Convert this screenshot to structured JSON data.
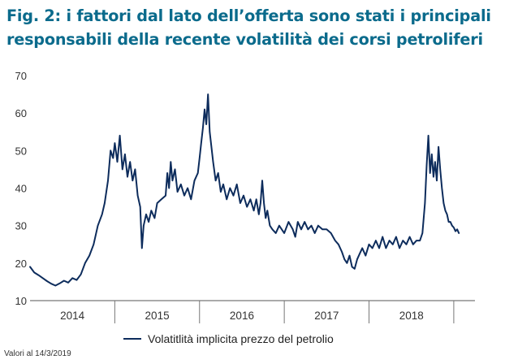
{
  "chart_data": {
    "type": "line",
    "title": "Fig. 2: i fattori dal lato dell’offerta sono stati i principali responsabili della recente volatilità dei corsi petroliferi",
    "title_lines": [
      "Fig. 2: i fattori dal lato dell’offerta sono stati i principali",
      "responsabili della recente volatilità dei corsi petroliferi"
    ],
    "xlabel": "",
    "ylabel": "",
    "xlim": [
      2014.0,
      2019.25
    ],
    "ylim": [
      10,
      70
    ],
    "y_ticks": [
      10,
      20,
      30,
      40,
      50,
      60,
      70
    ],
    "x_tick_labels": [
      {
        "label": "2014",
        "pos": 2014.5
      },
      {
        "label": "2015",
        "pos": 2015.5
      },
      {
        "label": "2016",
        "pos": 2016.5
      },
      {
        "label": "2017",
        "pos": 2017.5
      },
      {
        "label": "2018",
        "pos": 2018.5
      }
    ],
    "x_separators": [
      2015.0,
      2016.0,
      2017.0,
      2018.0,
      2019.0
    ],
    "grid": false,
    "legend": "bottom-center",
    "series": [
      {
        "name": "Volatitlità implicita prezzo del petrolio",
        "color": "#0d2c5c",
        "points": [
          [
            2014.0,
            19.0
          ],
          [
            2014.05,
            17.5
          ],
          [
            2014.1,
            16.8
          ],
          [
            2014.15,
            16.0
          ],
          [
            2014.2,
            15.2
          ],
          [
            2014.25,
            14.5
          ],
          [
            2014.3,
            14.0
          ],
          [
            2014.35,
            14.6
          ],
          [
            2014.4,
            15.3
          ],
          [
            2014.45,
            14.8
          ],
          [
            2014.5,
            16.0
          ],
          [
            2014.55,
            15.5
          ],
          [
            2014.6,
            17.0
          ],
          [
            2014.65,
            20.0
          ],
          [
            2014.7,
            22.0
          ],
          [
            2014.75,
            25.0
          ],
          [
            2014.8,
            30.0
          ],
          [
            2014.85,
            33.0
          ],
          [
            2014.88,
            36.0
          ],
          [
            2014.92,
            42.0
          ],
          [
            2014.95,
            50.0
          ],
          [
            2014.98,
            48.0
          ],
          [
            2015.0,
            52.0
          ],
          [
            2015.03,
            47.0
          ],
          [
            2015.06,
            54.0
          ],
          [
            2015.09,
            45.0
          ],
          [
            2015.12,
            49.0
          ],
          [
            2015.15,
            43.0
          ],
          [
            2015.18,
            47.0
          ],
          [
            2015.21,
            42.0
          ],
          [
            2015.24,
            45.0
          ],
          [
            2015.27,
            38.0
          ],
          [
            2015.3,
            35.0
          ],
          [
            2015.32,
            24.0
          ],
          [
            2015.34,
            30.0
          ],
          [
            2015.37,
            33.0
          ],
          [
            2015.4,
            31.0
          ],
          [
            2015.43,
            34.0
          ],
          [
            2015.47,
            32.0
          ],
          [
            2015.5,
            36.0
          ],
          [
            2015.55,
            37.0
          ],
          [
            2015.6,
            38.0
          ],
          [
            2015.62,
            44.0
          ],
          [
            2015.64,
            40.0
          ],
          [
            2015.66,
            47.0
          ],
          [
            2015.68,
            42.0
          ],
          [
            2015.71,
            45.0
          ],
          [
            2015.74,
            39.0
          ],
          [
            2015.78,
            41.0
          ],
          [
            2015.82,
            38.0
          ],
          [
            2015.86,
            40.0
          ],
          [
            2015.9,
            37.0
          ],
          [
            2015.94,
            42.0
          ],
          [
            2015.98,
            44.0
          ],
          [
            2016.0,
            48.0
          ],
          [
            2016.02,
            52.0
          ],
          [
            2016.04,
            56.0
          ],
          [
            2016.06,
            61.0
          ],
          [
            2016.08,
            57.0
          ],
          [
            2016.1,
            65.0
          ],
          [
            2016.12,
            55.0
          ],
          [
            2016.14,
            51.0
          ],
          [
            2016.16,
            47.0
          ],
          [
            2016.19,
            42.0
          ],
          [
            2016.22,
            44.0
          ],
          [
            2016.25,
            39.0
          ],
          [
            2016.28,
            41.0
          ],
          [
            2016.32,
            37.0
          ],
          [
            2016.36,
            40.0
          ],
          [
            2016.4,
            38.0
          ],
          [
            2016.44,
            41.0
          ],
          [
            2016.48,
            36.0
          ],
          [
            2016.52,
            38.0
          ],
          [
            2016.56,
            35.0
          ],
          [
            2016.6,
            37.0
          ],
          [
            2016.64,
            34.0
          ],
          [
            2016.67,
            37.0
          ],
          [
            2016.7,
            33.0
          ],
          [
            2016.72,
            36.0
          ],
          [
            2016.74,
            42.0
          ],
          [
            2016.76,
            36.0
          ],
          [
            2016.78,
            32.0
          ],
          [
            2016.8,
            34.0
          ],
          [
            2016.83,
            30.0
          ],
          [
            2016.86,
            29.0
          ],
          [
            2016.9,
            28.0
          ],
          [
            2016.94,
            30.0
          ],
          [
            2017.0,
            28.0
          ],
          [
            2017.05,
            31.0
          ],
          [
            2017.1,
            29.0
          ],
          [
            2017.13,
            27.0
          ],
          [
            2017.16,
            31.0
          ],
          [
            2017.2,
            29.0
          ],
          [
            2017.24,
            31.0
          ],
          [
            2017.28,
            29.0
          ],
          [
            2017.32,
            30.0
          ],
          [
            2017.36,
            28.0
          ],
          [
            2017.4,
            30.0
          ],
          [
            2017.45,
            29.0
          ],
          [
            2017.5,
            29.0
          ],
          [
            2017.55,
            28.0
          ],
          [
            2017.6,
            26.0
          ],
          [
            2017.64,
            25.0
          ],
          [
            2017.68,
            23.0
          ],
          [
            2017.71,
            21.0
          ],
          [
            2017.74,
            20.0
          ],
          [
            2017.77,
            22.0
          ],
          [
            2017.8,
            19.0
          ],
          [
            2017.83,
            18.5
          ],
          [
            2017.86,
            21.0
          ],
          [
            2017.89,
            22.5
          ],
          [
            2017.92,
            24.0
          ],
          [
            2017.96,
            22.0
          ],
          [
            2018.0,
            25.0
          ],
          [
            2018.04,
            24.0
          ],
          [
            2018.08,
            26.0
          ],
          [
            2018.12,
            24.0
          ],
          [
            2018.16,
            27.0
          ],
          [
            2018.2,
            24.0
          ],
          [
            2018.24,
            26.0
          ],
          [
            2018.28,
            25.0
          ],
          [
            2018.32,
            27.0
          ],
          [
            2018.36,
            24.0
          ],
          [
            2018.4,
            26.0
          ],
          [
            2018.44,
            25.0
          ],
          [
            2018.48,
            27.0
          ],
          [
            2018.52,
            25.0
          ],
          [
            2018.56,
            26.0
          ],
          [
            2018.6,
            26.0
          ],
          [
            2018.63,
            28.0
          ],
          [
            2018.66,
            36.0
          ],
          [
            2018.68,
            46.0
          ],
          [
            2018.7,
            54.0
          ],
          [
            2018.72,
            44.0
          ],
          [
            2018.74,
            49.0
          ],
          [
            2018.76,
            43.0
          ],
          [
            2018.78,
            47.0
          ],
          [
            2018.8,
            42.0
          ],
          [
            2018.82,
            51.0
          ],
          [
            2018.84,
            45.0
          ],
          [
            2018.86,
            40.0
          ],
          [
            2018.88,
            36.0
          ],
          [
            2018.9,
            34.0
          ],
          [
            2018.92,
            33.0
          ],
          [
            2018.94,
            31.0
          ],
          [
            2018.96,
            31.0
          ],
          [
            2018.98,
            30.0
          ],
          [
            2019.0,
            29.5
          ],
          [
            2019.02,
            28.5
          ],
          [
            2019.04,
            29.0
          ],
          [
            2019.06,
            28.0
          ]
        ]
      }
    ]
  },
  "footnote": "Valori al 14/3/2019"
}
